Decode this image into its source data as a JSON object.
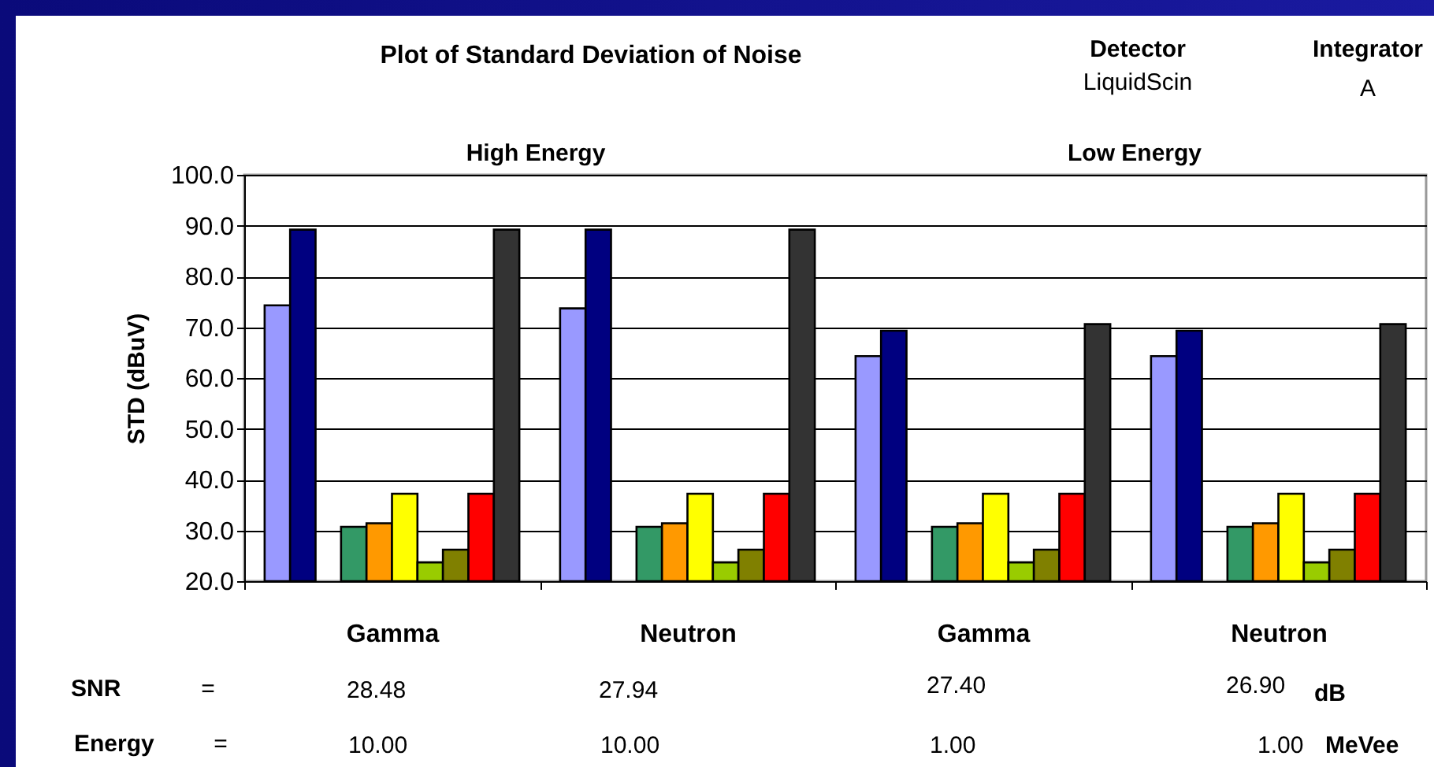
{
  "chart_data": {
    "type": "bar",
    "title": "Plot of Standard Deviation of Noise",
    "ylabel": "STD (dBuV)",
    "categories": [
      "Gamma",
      "Neutron",
      "Gamma",
      "Neutron"
    ],
    "series": [
      {
        "color": "#9999ff",
        "values": [
          74.3,
          73.7,
          64.3,
          64.3
        ]
      },
      {
        "color": "#000080",
        "values": [
          89.2,
          89.2,
          69.3,
          69.3
        ]
      },
      {
        "values": [
          null,
          null,
          null,
          null
        ]
      },
      {
        "color": "#339966",
        "values": [
          30.7,
          30.7,
          30.7,
          30.7
        ]
      },
      {
        "color": "#ff9900",
        "values": [
          31.4,
          31.4,
          31.4,
          31.4
        ]
      },
      {
        "color": "#ffff00",
        "values": [
          37.2,
          37.2,
          37.2,
          37.2
        ]
      },
      {
        "color": "#99cc00",
        "values": [
          23.7,
          23.7,
          23.7,
          23.7
        ]
      },
      {
        "color": "#808000",
        "values": [
          26.2,
          26.2,
          26.2,
          26.2
        ]
      },
      {
        "color": "#ff0000",
        "values": [
          37.2,
          37.2,
          37.2,
          37.2
        ]
      },
      {
        "color": "#333333",
        "values": [
          89.2,
          89.2,
          70.6,
          70.6
        ]
      }
    ],
    "ylim": [
      20,
      100
    ],
    "yticks": [
      {
        "value": 20,
        "label": "20.0"
      },
      {
        "value": 30,
        "label": "30.0"
      },
      {
        "value": 40,
        "label": "40.0"
      },
      {
        "value": 50,
        "label": "50.0"
      },
      {
        "value": 60,
        "label": "60.0"
      },
      {
        "value": 70,
        "label": "70.0"
      },
      {
        "value": 80,
        "label": "80.0"
      },
      {
        "value": 90,
        "label": "90.0"
      },
      {
        "value": 100,
        "label": "100.0"
      }
    ],
    "grid": "y",
    "legend": false,
    "annotations": [
      "Detector",
      "LiquidScin",
      "Integrator",
      "A",
      "High Energy",
      "Low Energy",
      "SNR",
      "=",
      "28.48",
      "27.94",
      "27.40",
      "26.90",
      "dB",
      "Energy",
      "=",
      "10.00",
      "10.00",
      "1.00",
      "1.00",
      "MeVee"
    ]
  }
}
